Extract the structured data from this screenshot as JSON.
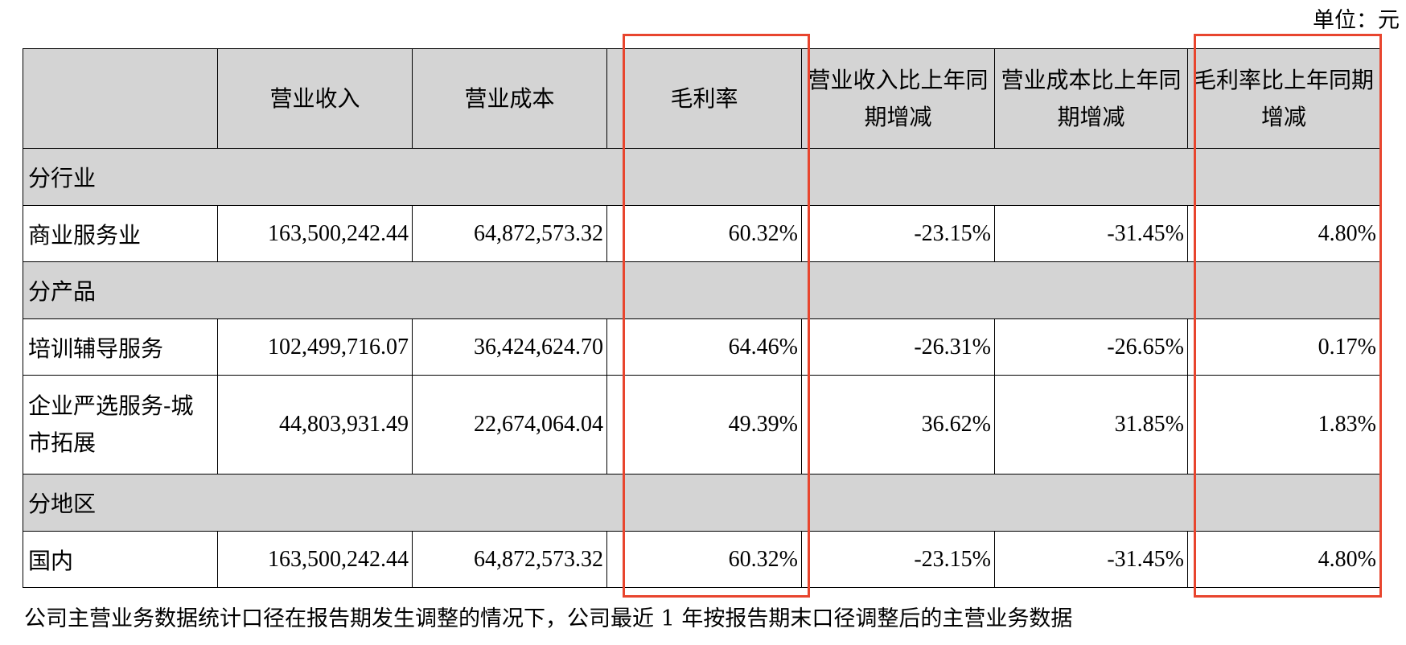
{
  "unit_label": "单位：元",
  "columns": [
    "",
    "营业收入",
    "营业成本",
    "毛利率",
    "营业收入比上年同期增减",
    "营业成本比上年同期增减",
    "毛利率比上年同期增减"
  ],
  "sections": [
    {
      "title": "分行业",
      "rows": [
        [
          "商业服务业",
          "163,500,242.44",
          "64,872,573.32",
          "60.32%",
          "-23.15%",
          "-31.45%",
          "4.80%"
        ]
      ]
    },
    {
      "title": "分产品",
      "rows": [
        [
          "培训辅导服务",
          "102,499,716.07",
          "36,424,624.70",
          "64.46%",
          "-26.31%",
          "-26.65%",
          "0.17%"
        ],
        [
          "企业严选服务-城市拓展",
          "44,803,931.49",
          "22,674,064.04",
          "49.39%",
          "36.62%",
          "31.85%",
          "1.83%"
        ]
      ]
    },
    {
      "title": "分地区",
      "rows": [
        [
          "国内",
          "163,500,242.44",
          "64,872,573.32",
          "60.32%",
          "-23.15%",
          "-31.45%",
          "4.80%"
        ]
      ]
    }
  ],
  "footnote": "公司主营业务数据统计口径在报告期发生调整的情况下，公司最近 1 年按报告期末口径调整后的主营业务数据",
  "highlight_color": "#e8452e",
  "header_bg": "#d4d4d4"
}
